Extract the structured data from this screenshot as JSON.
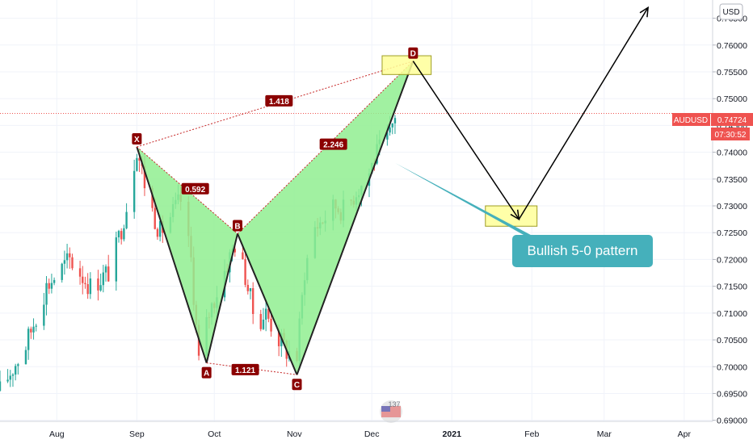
{
  "currency_button": "USD",
  "symbol_label": "AUDUSD",
  "last_price": "0.74724",
  "countdown": "07:30:52",
  "callout_text": "Bullish 5-0 pattern",
  "watermark_text": "137",
  "colors": {
    "up": "#26a69a",
    "down": "#ef5350",
    "pattern_fill": "#90ee90",
    "zone_fill": "#ffff99",
    "label_bg": "#8b0000",
    "callout_bg": "#45b0bb",
    "price_tag": "#ef5350",
    "grid": "#f0f3fa",
    "axis_text": "#131722"
  },
  "chart_data": {
    "type": "candlestick",
    "symbol": "AUDUSD",
    "currency": "USD",
    "y_axis": {
      "ticks": [
        "0.69000",
        "0.69500",
        "0.70000",
        "0.70500",
        "0.71000",
        "0.71500",
        "0.72000",
        "0.72500",
        "0.73000",
        "0.73500",
        "0.74000",
        "0.74500",
        "0.75000",
        "0.75500",
        "0.76000",
        "0.76500"
      ],
      "ylim": [
        0.6898,
        0.7684
      ]
    },
    "x_axis": {
      "ticks": [
        {
          "label": "Aug",
          "date": "2020-08-01"
        },
        {
          "label": "Sep",
          "date": "2020-09-01"
        },
        {
          "label": "Oct",
          "date": "2020-10-01"
        },
        {
          "label": "Nov",
          "date": "2020-11-01"
        },
        {
          "label": "Dec",
          "date": "2020-12-01"
        },
        {
          "label": "2021",
          "date": "2021-01-01"
        },
        {
          "label": "Feb",
          "date": "2021-02-01"
        },
        {
          "label": "Mar",
          "date": "2021-03-01"
        },
        {
          "label": "Apr",
          "date": "2021-04-01"
        }
      ],
      "xlim": [
        "2020-07-10",
        "2021-04-12"
      ]
    },
    "grid": true,
    "last_price": 0.74724,
    "price_series": [
      {
        "date": "2020-07-10",
        "close": 0.6955
      },
      {
        "date": "2020-07-20",
        "close": 0.704
      },
      {
        "date": "2020-07-28",
        "close": 0.715
      },
      {
        "date": "2020-08-06",
        "close": 0.72
      },
      {
        "date": "2020-08-14",
        "close": 0.715
      },
      {
        "date": "2020-08-22",
        "close": 0.718
      },
      {
        "date": "2020-08-28",
        "close": 0.73
      },
      {
        "date": "2020-09-01",
        "close": 0.741
      },
      {
        "date": "2020-09-05",
        "close": 0.732
      },
      {
        "date": "2020-09-10",
        "close": 0.725
      },
      {
        "date": "2020-09-14",
        "close": 0.728
      },
      {
        "date": "2020-09-18",
        "close": 0.731
      },
      {
        "date": "2020-09-22",
        "close": 0.72
      },
      {
        "date": "2020-09-25",
        "close": 0.701
      },
      {
        "date": "2020-09-29",
        "close": 0.71
      },
      {
        "date": "2020-10-05",
        "close": 0.718
      },
      {
        "date": "2020-10-09",
        "close": 0.723
      },
      {
        "date": "2020-10-13",
        "close": 0.717
      },
      {
        "date": "2020-10-17",
        "close": 0.708
      },
      {
        "date": "2020-10-21",
        "close": 0.71
      },
      {
        "date": "2020-10-25",
        "close": 0.706
      },
      {
        "date": "2020-10-29",
        "close": 0.703
      },
      {
        "date": "2020-11-02",
        "close": 0.702
      },
      {
        "date": "2020-11-05",
        "close": 0.718
      },
      {
        "date": "2020-11-09",
        "close": 0.726
      },
      {
        "date": "2020-11-13",
        "close": 0.728
      },
      {
        "date": "2020-11-17",
        "close": 0.73
      },
      {
        "date": "2020-11-21",
        "close": 0.729
      },
      {
        "date": "2020-11-25",
        "close": 0.733
      },
      {
        "date": "2020-11-29",
        "close": 0.735
      },
      {
        "date": "2020-12-02",
        "close": 0.739
      },
      {
        "date": "2020-12-05",
        "close": 0.741
      },
      {
        "date": "2020-12-08",
        "close": 0.743
      },
      {
        "date": "2020-12-10",
        "close": 0.7472
      }
    ],
    "pattern": {
      "name": "Bullish 5-0 pattern",
      "points": [
        {
          "label": "X",
          "date": "2020-09-01",
          "price": 0.741
        },
        {
          "label": "A",
          "date": "2020-09-28",
          "price": 0.7007
        },
        {
          "label": "B",
          "date": "2020-10-10",
          "price": 0.7248
        },
        {
          "label": "C",
          "date": "2020-11-02",
          "price": 0.6985
        },
        {
          "label": "D",
          "date": "2020-12-17",
          "price": 0.757
        }
      ],
      "ratios": [
        {
          "label": "0.592",
          "from": "X",
          "to": "B"
        },
        {
          "label": "1.121",
          "from": "A",
          "to": "C"
        },
        {
          "label": "2.246",
          "from": "B",
          "to": "D"
        },
        {
          "label": "1.418",
          "from": "X",
          "to": "D"
        }
      ]
    },
    "projection": [
      {
        "date": "2020-12-17",
        "price": 0.757
      },
      {
        "date": "2021-01-27",
        "price": 0.7275
      },
      {
        "date": "2021-03-18",
        "price": 0.767
      }
    ],
    "zones": [
      {
        "name": "D zone",
        "from": "2020-12-05",
        "to": "2020-12-24",
        "low": 0.7545,
        "high": 0.758
      },
      {
        "name": "target zone",
        "from": "2021-01-14",
        "to": "2021-02-03",
        "low": 0.7262,
        "high": 0.73
      }
    ],
    "callout_anchor": {
      "date": "2020-12-10",
      "price": 0.738
    }
  }
}
